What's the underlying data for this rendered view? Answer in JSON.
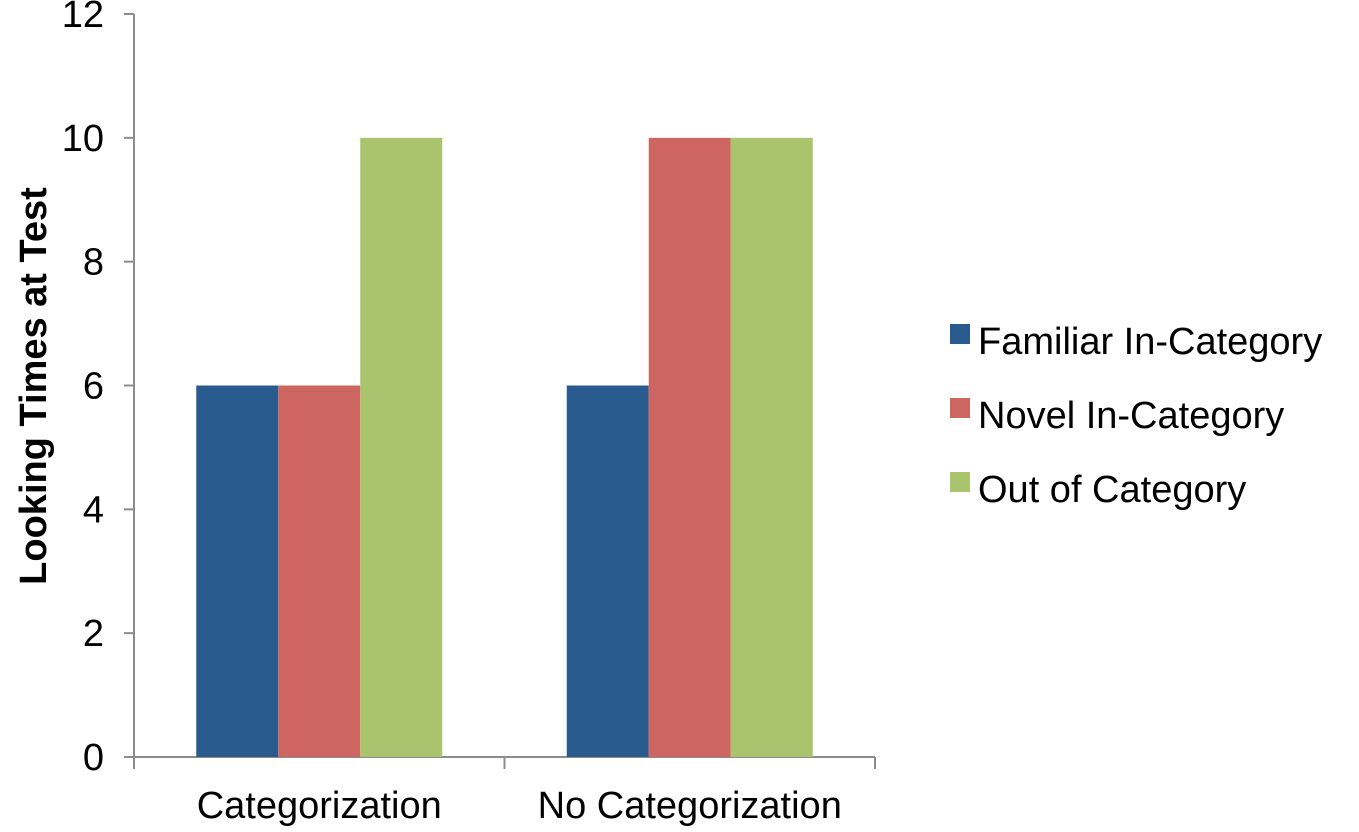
{
  "chart_data": {
    "type": "bar",
    "categories": [
      "Categorization",
      "No Categorization"
    ],
    "series": [
      {
        "name": "Familiar In-Category",
        "color": "#2a5b8e",
        "values": [
          6,
          6
        ]
      },
      {
        "name": "Novel In-Category",
        "color": "#cd6660",
        "values": [
          6,
          10
        ]
      },
      {
        "name": "Out of Category",
        "color": "#a9c46c",
        "values": [
          10,
          10
        ]
      }
    ],
    "title": "",
    "xlabel": "",
    "ylabel": "Looking Times at Test",
    "ylim": [
      0,
      12
    ],
    "yticks": [
      "0",
      "2",
      "4",
      "6",
      "8",
      "10",
      "12"
    ],
    "grid": false,
    "legend_position": "right"
  }
}
